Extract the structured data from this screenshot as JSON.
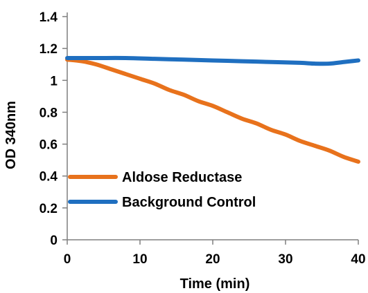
{
  "chart_data": {
    "type": "line",
    "title": "",
    "xlabel": "Time (min)",
    "ylabel": "OD 340nm",
    "xlim": [
      0,
      40
    ],
    "ylim": [
      0,
      1.4
    ],
    "x_ticks": [
      "0",
      "10",
      "20",
      "30",
      "40"
    ],
    "x_tick_values": [
      0,
      10,
      20,
      30,
      40
    ],
    "y_ticks": [
      "0",
      "0.2",
      "0.4",
      "0.6",
      "0.8",
      "1",
      "1.2",
      "1.4"
    ],
    "y_tick_values": [
      0,
      0.2,
      0.4,
      0.6,
      0.8,
      1.0,
      1.2,
      1.4
    ],
    "grid": false,
    "legend_position": "left-bottom",
    "series": [
      {
        "name": "Aldose Reductase",
        "color": "#E8721C",
        "x": [
          0,
          2,
          4,
          6,
          8,
          10,
          12,
          14,
          16,
          18,
          20,
          22,
          24,
          26,
          28,
          30,
          32,
          34,
          36,
          38,
          40
        ],
        "y": [
          1.13,
          1.12,
          1.1,
          1.07,
          1.04,
          1.01,
          0.98,
          0.94,
          0.91,
          0.87,
          0.84,
          0.8,
          0.76,
          0.73,
          0.69,
          0.66,
          0.62,
          0.59,
          0.56,
          0.52,
          0.49
        ]
      },
      {
        "name": "Background Control",
        "color": "#1F6FC0",
        "x": [
          0,
          4,
          8,
          12,
          16,
          20,
          24,
          28,
          32,
          34,
          36,
          38,
          40
        ],
        "y": [
          1.14,
          1.14,
          1.14,
          1.135,
          1.13,
          1.125,
          1.12,
          1.115,
          1.11,
          1.105,
          1.105,
          1.115,
          1.125
        ]
      }
    ]
  }
}
